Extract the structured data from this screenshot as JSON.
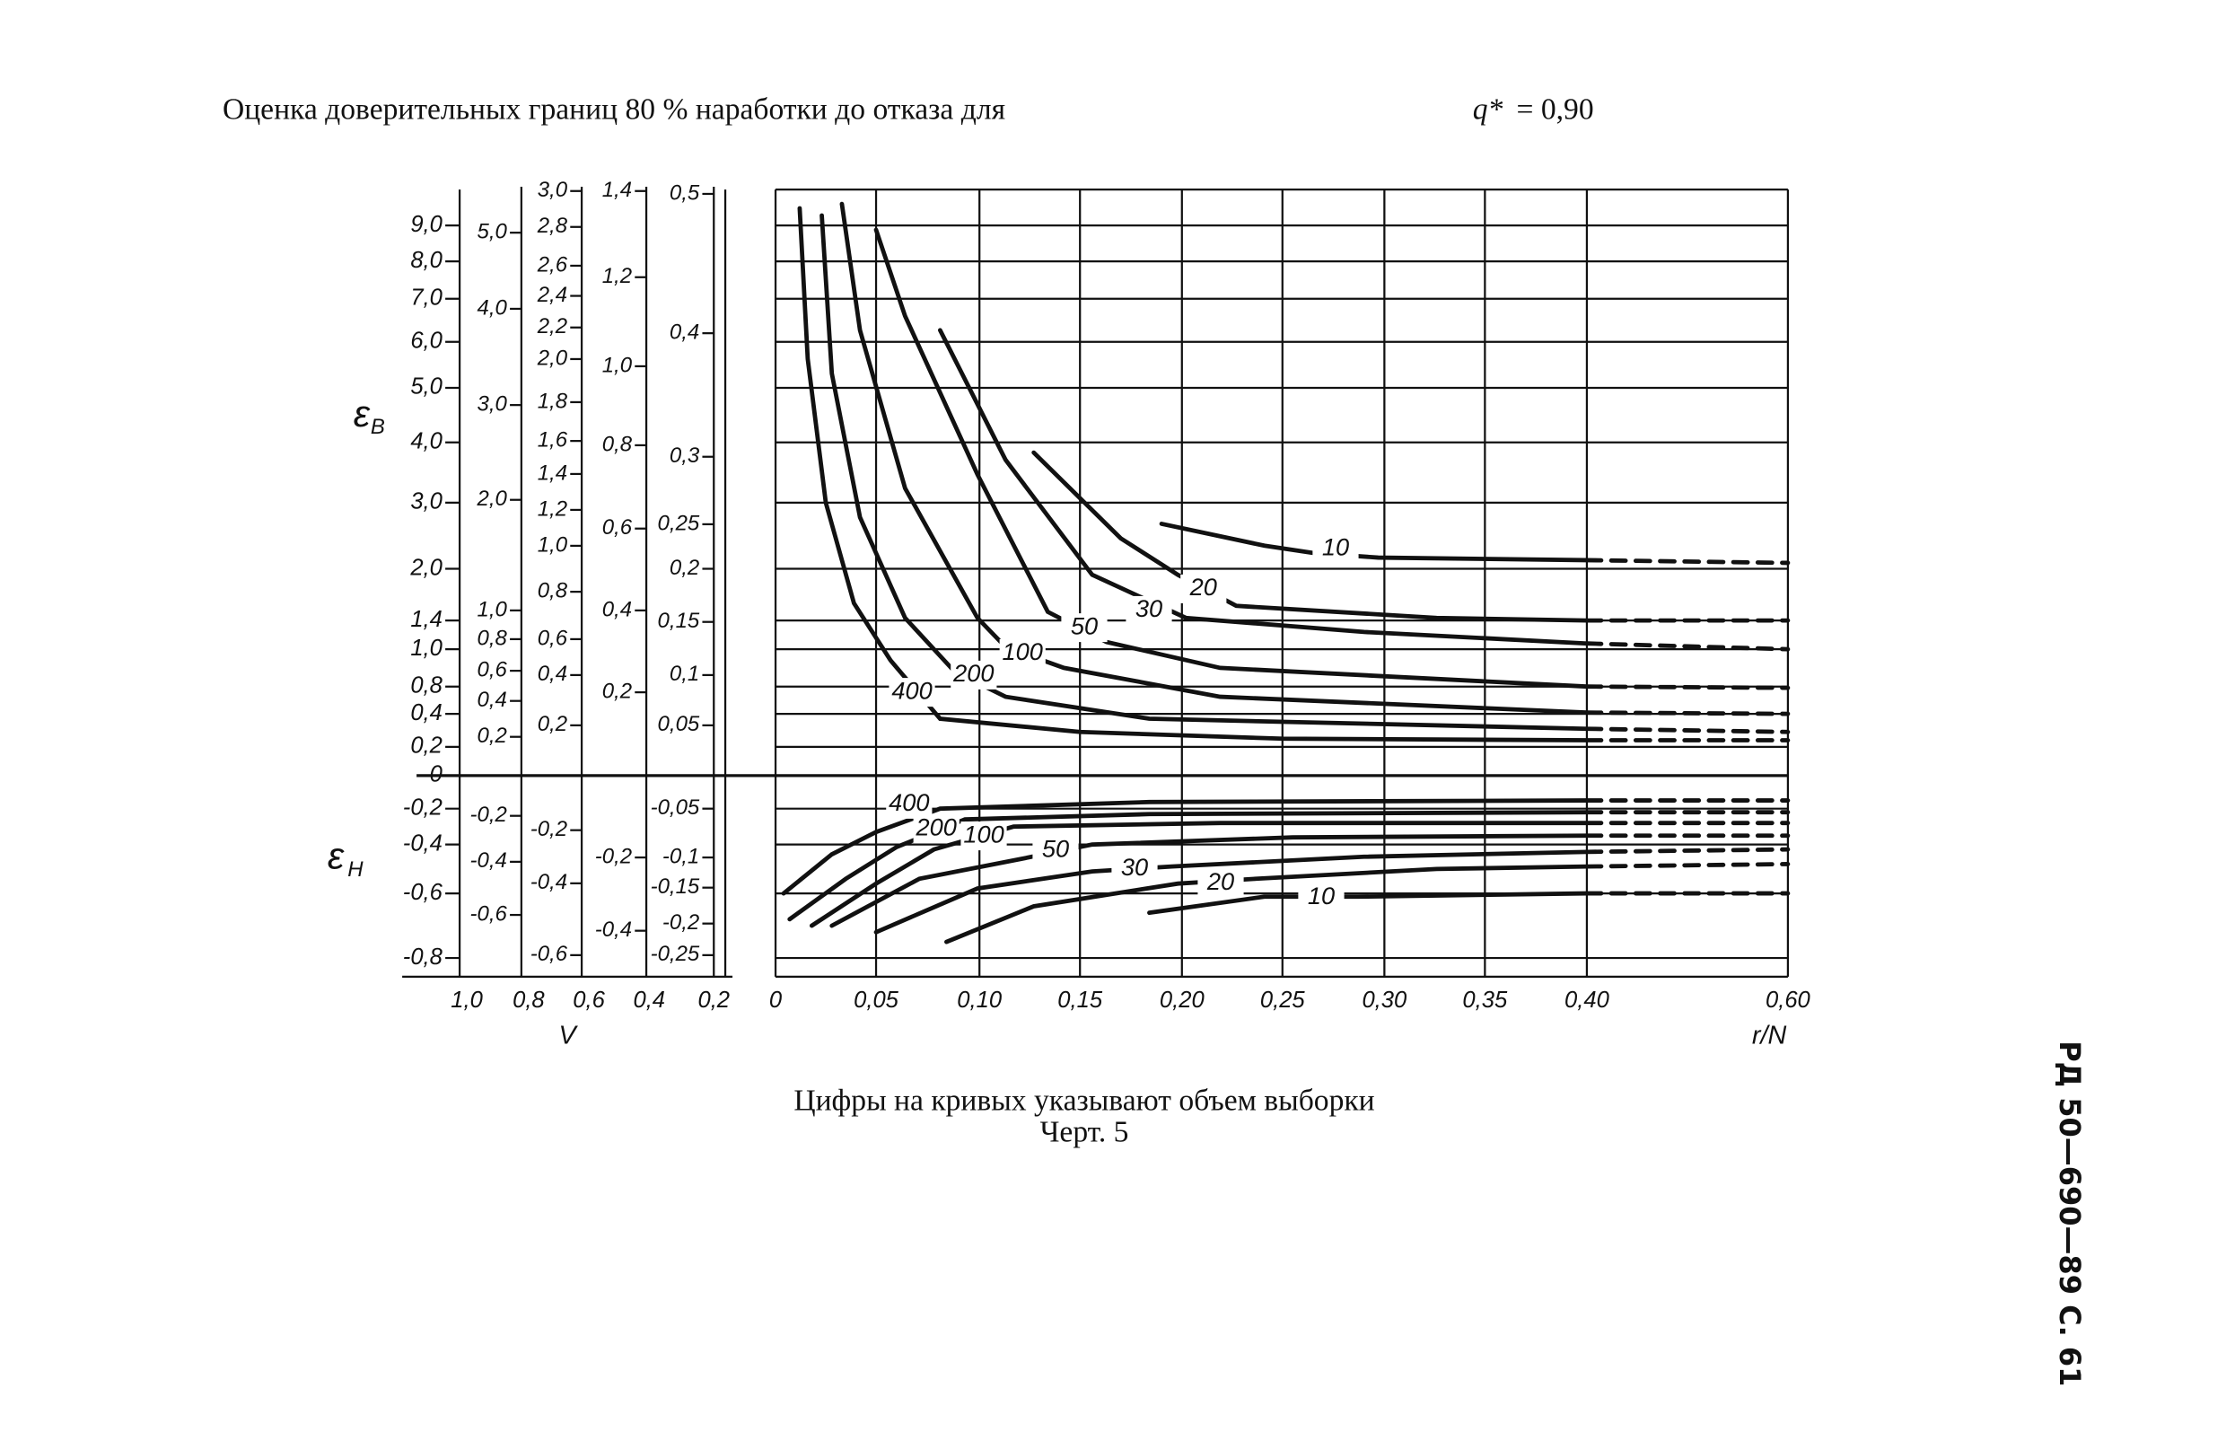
{
  "page": {
    "title": {
      "text": "Оценка доверительных границ 80 % наработки до отказа для",
      "symbol": "q*",
      "rest": "= 0,90"
    },
    "caption": "Цифры на кривых указывают объем выборки",
    "figure": "Черт. 5",
    "page_id": "РД 50—690—89 С. 61"
  },
  "chart_data": {
    "type": "nomogram",
    "color": "#111111",
    "grid": true,
    "x_label": "r/N",
    "xlim": [
      0,
      0.6
    ],
    "xticks": [
      0,
      {
        "value": 0.05,
        "label": "0,05"
      },
      {
        "value": 0.1,
        "label": "0,10"
      },
      {
        "value": 0.15,
        "label": "0,15"
      },
      {
        "value": 0.2,
        "label": "0,20"
      },
      {
        "value": 0.25,
        "label": "0,25"
      },
      {
        "value": 0.3,
        "label": "0,30"
      },
      {
        "value": 0.35,
        "label": "0,35"
      },
      {
        "value": 0.4,
        "label": "0,40"
      },
      {
        "value": 0.6,
        "label": "0,60"
      }
    ],
    "y_label_upper": {
      "symbol": "ε",
      "sub": "В"
    },
    "y_label_lower": {
      "symbol": "ε",
      "sub": "Н"
    },
    "ylim": [
      -0.86,
      10
    ],
    "yticks": [
      {
        "value": 9,
        "label": "9,0"
      },
      {
        "value": 8,
        "label": "8,0"
      },
      {
        "value": 7,
        "label": "7,0"
      },
      {
        "value": 6,
        "label": "6,0"
      },
      {
        "value": 5,
        "label": "5,0"
      },
      {
        "value": 4,
        "label": "4,0"
      },
      {
        "value": 3,
        "label": "3,0"
      },
      {
        "value": 2,
        "label": "2,0"
      },
      {
        "value": 1.4,
        "label": "1,4"
      },
      {
        "value": 1,
        "label": "1,0"
      },
      {
        "value": 0.8,
        "label": "0,8"
      },
      {
        "value": 0.4,
        "label": "0,4"
      },
      {
        "value": 0.2,
        "label": "0,2"
      },
      0,
      {
        "value": -0.2,
        "label": "-0,2"
      },
      {
        "value": -0.4,
        "label": "-0,4"
      },
      {
        "value": -0.6,
        "label": "-0,6"
      },
      {
        "value": -0.8,
        "label": "-0,8"
      }
    ],
    "scales": [
      {
        "ticks": [
          {
            "value": 5,
            "label": "5,0"
          },
          {
            "value": 4,
            "label": "4,0"
          },
          {
            "value": 3,
            "label": "3,0"
          },
          {
            "value": 2,
            "label": "2,0"
          },
          {
            "value": 1,
            "label": "1,0"
          },
          {
            "value": 0.8,
            "label": "0,8"
          },
          {
            "value": 0.6,
            "label": "0,6"
          },
          {
            "value": 0.4,
            "label": "0,4"
          },
          {
            "value": 0.2,
            "label": "0,2"
          },
          {
            "value": -0.2,
            "label": "-0,2"
          },
          {
            "value": -0.4,
            "label": "-0,4"
          },
          {
            "value": -0.6,
            "label": "-0,6"
          }
        ]
      },
      {
        "ticks": [
          {
            "value": 3,
            "label": "3,0"
          },
          {
            "value": 2.8,
            "label": "2,8"
          },
          {
            "value": 2.6,
            "label": "2,6"
          },
          {
            "value": 2.4,
            "label": "2,4"
          },
          {
            "value": 2.2,
            "label": "2,2"
          },
          {
            "value": 2,
            "label": "2,0"
          },
          {
            "value": 1.8,
            "label": "1,8"
          },
          {
            "value": 1.6,
            "label": "1,6"
          },
          {
            "value": 1.4,
            "label": "1,4"
          },
          {
            "value": 1.2,
            "label": "1,2"
          },
          {
            "value": 1,
            "label": "1,0"
          },
          {
            "value": 0.8,
            "label": "0,8"
          },
          {
            "value": 0.6,
            "label": "0,6"
          },
          {
            "value": 0.4,
            "label": "0,4"
          },
          {
            "value": 0.2,
            "label": "0,2"
          },
          {
            "value": -0.2,
            "label": "-0,2"
          },
          {
            "value": -0.4,
            "label": "-0,4"
          },
          {
            "value": -0.6,
            "label": "-0,6"
          }
        ]
      },
      {
        "ticks": [
          {
            "value": 1.4,
            "label": "1,4"
          },
          {
            "value": 1.2,
            "label": "1,2"
          },
          {
            "value": 1,
            "label": "1,0"
          },
          {
            "value": 0.8,
            "label": "0,8"
          },
          {
            "value": 0.6,
            "label": "0,6"
          },
          {
            "value": 0.4,
            "label": "0,4"
          },
          {
            "value": 0.2,
            "label": "0,2"
          },
          {
            "value": -0.2,
            "label": "-0,2"
          },
          {
            "value": -0.4,
            "label": "-0,4"
          }
        ]
      },
      {
        "ticks": [
          {
            "value": 0.5,
            "label": "0,5"
          },
          {
            "value": 0.4,
            "label": "0,4"
          },
          {
            "value": 0.3,
            "label": "0,3"
          },
          {
            "value": 0.25,
            "label": "0,25"
          },
          {
            "value": 0.2,
            "label": "0,2"
          },
          {
            "value": 0.15,
            "label": "0,15"
          },
          {
            "value": 0.1,
            "label": "0,1"
          },
          {
            "value": 0.05,
            "label": "0,05"
          },
          {
            "value": -0.05,
            "label": "-0,05"
          },
          {
            "value": -0.1,
            "label": "-0,1"
          },
          {
            "value": -0.15,
            "label": "-0,15"
          },
          {
            "value": -0.2,
            "label": "-0,2"
          },
          {
            "value": -0.25,
            "label": "-0,25"
          }
        ]
      }
    ],
    "v_label": "V",
    "v_ticks": [
      {
        "value": 1,
        "label": "1,0"
      },
      {
        "value": 0.8,
        "label": "0,8"
      },
      {
        "value": 0.6,
        "label": "0,6"
      },
      {
        "value": 0.4,
        "label": "0,4"
      },
      {
        "value": 0.2,
        "label": "0,2"
      }
    ],
    "series": [
      {
        "name": "400",
        "x": [
          0.012,
          0.016,
          0.025,
          0.039,
          0.057,
          0.081,
          0.15,
          0.25,
          0.4,
          0.6
        ],
        "values": [
          9.48,
          5.63,
          3.0,
          1.6,
          0.94,
          0.37,
          0.29,
          0.25,
          0.24,
          0.24
        ]
      },
      {
        "name": "200",
        "x": [
          0.023,
          0.028,
          0.042,
          0.064,
          0.088,
          0.113,
          0.184,
          0.4,
          0.6
        ],
        "values": [
          9.28,
          5.31,
          2.78,
          1.43,
          0.88,
          0.65,
          0.37,
          0.31,
          0.29
        ]
      },
      {
        "name": "100",
        "x": [
          0.033,
          0.042,
          0.064,
          0.099,
          0.113,
          0.142,
          0.219,
          0.4,
          0.6
        ],
        "values": [
          9.6,
          6.27,
          3.24,
          1.43,
          1.03,
          0.9,
          0.65,
          0.42,
          0.4
        ]
      },
      {
        "name": "50",
        "x": [
          0.05,
          0.064,
          0.099,
          0.134,
          0.163,
          0.219,
          0.4,
          0.6
        ],
        "values": [
          8.88,
          6.6,
          3.47,
          1.5,
          1.1,
          0.9,
          0.8,
          0.78
        ]
      },
      {
        "name": "30",
        "x": [
          0.081,
          0.113,
          0.156,
          0.202,
          0.29,
          0.4,
          0.6
        ],
        "values": [
          6.27,
          3.71,
          1.93,
          1.43,
          1.24,
          1.08,
          1.0
        ]
      },
      {
        "name": "20",
        "x": [
          0.127,
          0.17,
          0.198,
          0.227,
          0.326,
          0.4,
          0.6
        ],
        "values": [
          3.83,
          2.46,
          1.93,
          1.57,
          1.43,
          1.4,
          1.4
        ]
      },
      {
        "name": "10",
        "x": [
          0.19,
          0.241,
          0.265,
          0.297,
          0.4,
          0.6
        ],
        "values": [
          2.68,
          2.35,
          2.24,
          2.17,
          2.13,
          2.09
        ]
      },
      {
        "name": "400",
        "x": [
          0.004,
          0.028,
          0.05,
          0.081,
          0.184,
          0.4,
          0.6
        ],
        "values": [
          -0.6,
          -0.44,
          -0.33,
          -0.2,
          -0.16,
          -0.15,
          -0.15
        ]
      },
      {
        "name": "200",
        "x": [
          0.007,
          0.035,
          0.06,
          0.093,
          0.184,
          0.4,
          0.6
        ],
        "values": [
          -0.68,
          -0.54,
          -0.41,
          -0.26,
          -0.23,
          -0.22,
          -0.22
        ]
      },
      {
        "name": "100",
        "x": [
          0.018,
          0.05,
          0.078,
          0.117,
          0.219,
          0.4,
          0.6
        ],
        "values": [
          -0.7,
          -0.56,
          -0.42,
          -0.3,
          -0.28,
          -0.28,
          -0.28
        ]
      },
      {
        "name": "50",
        "x": [
          0.028,
          0.071,
          0.12,
          0.156,
          0.255,
          0.4,
          0.6
        ],
        "values": [
          -0.7,
          -0.54,
          -0.46,
          -0.4,
          -0.36,
          -0.35,
          -0.35
        ]
      },
      {
        "name": "30",
        "x": [
          0.05,
          0.099,
          0.156,
          0.195,
          0.29,
          0.4,
          0.6
        ],
        "values": [
          -0.72,
          -0.58,
          -0.51,
          -0.49,
          -0.45,
          -0.43,
          -0.42
        ]
      },
      {
        "name": "20",
        "x": [
          0.084,
          0.127,
          0.198,
          0.237,
          0.326,
          0.4,
          0.6
        ],
        "values": [
          -0.75,
          -0.64,
          -0.56,
          -0.54,
          -0.5,
          -0.49,
          -0.48
        ]
      },
      {
        "name": "10",
        "x": [
          0.184,
          0.241,
          0.287,
          0.4,
          0.6
        ],
        "values": [
          -0.66,
          -0.61,
          -0.61,
          -0.6,
          -0.6
        ]
      }
    ]
  }
}
